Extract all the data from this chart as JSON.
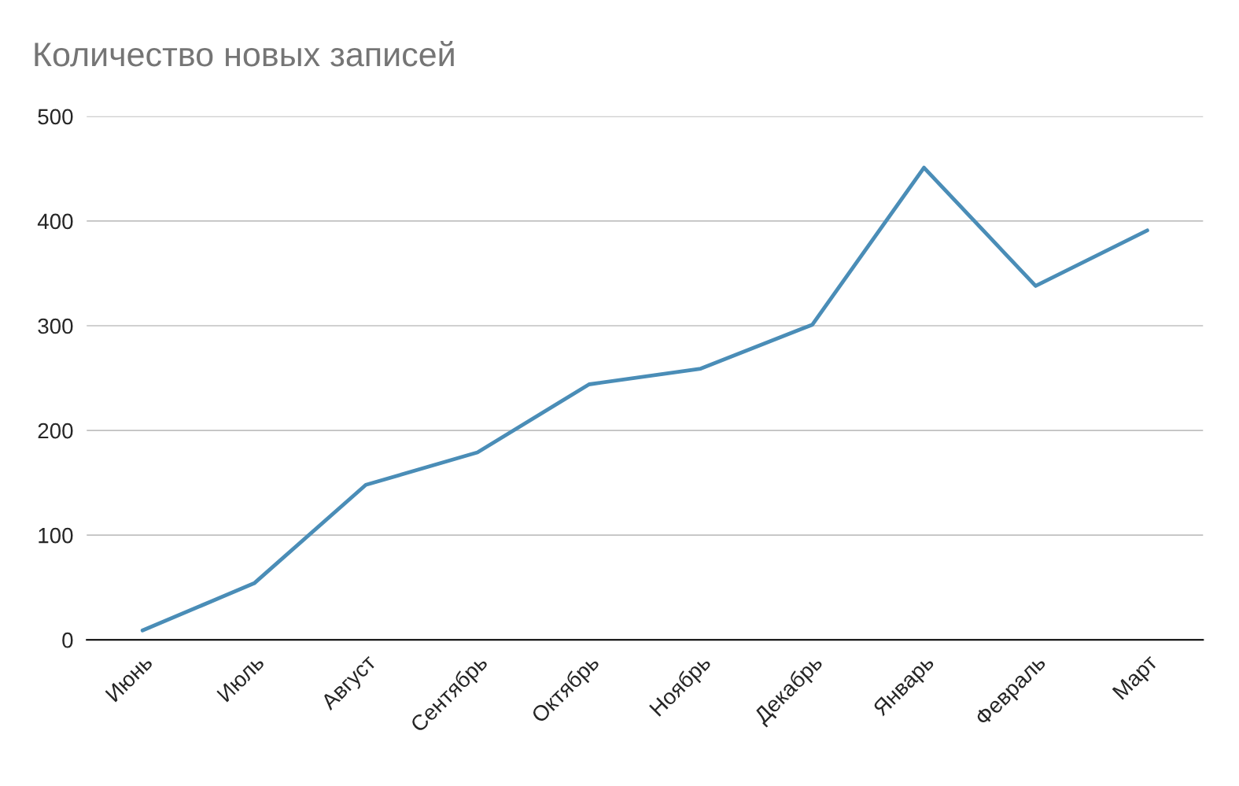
{
  "chart_data": {
    "type": "line",
    "title": "Количество новых записей",
    "categories": [
      "Июнь",
      "Июль",
      "Август",
      "Сентябрь",
      "Октябрь",
      "Ноябрь",
      "Декабрь",
      "Январь",
      "Февраль",
      "Март"
    ],
    "series": [
      {
        "color": "#4a8db7",
        "values": [
          9,
          54,
          148,
          179,
          244,
          259,
          301,
          451,
          338,
          391
        ]
      }
    ],
    "ylim": [
      0,
      500
    ],
    "yticks": [
      0,
      100,
      200,
      300,
      400,
      500
    ],
    "grid": "y",
    "legend": false,
    "marker": "none",
    "line_style": "solid"
  }
}
